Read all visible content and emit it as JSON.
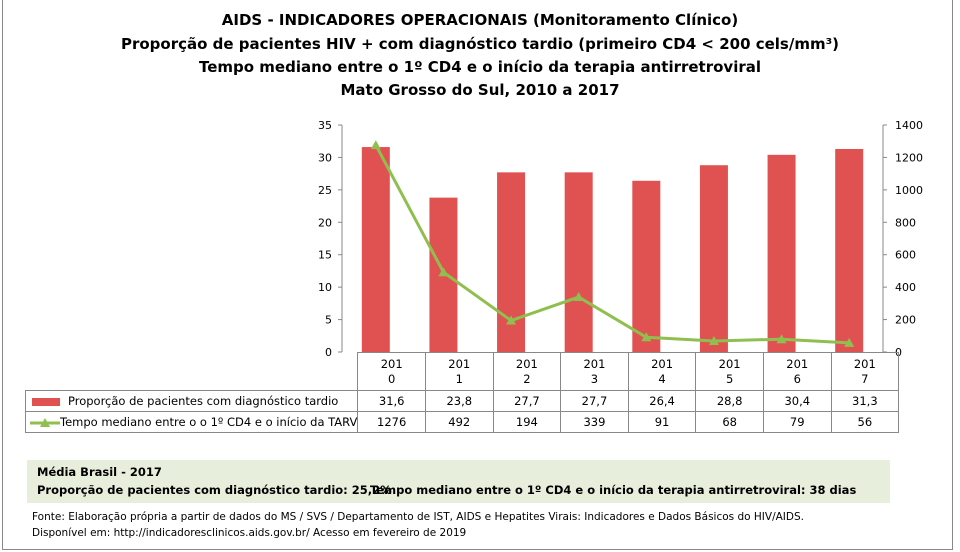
{
  "titles": [
    "AIDS - INDICADORES OPERACIONAIS (Monitoramento Clínico)",
    "Proporção de pacientes HIV + com diagnóstico tardio (primeiro CD4 < 200 cels/mm³)",
    "Tempo mediano entre o 1º CD4 e o início da terapia antirretroviral",
    "Mato Grosso do Sul, 2010 a 2017"
  ],
  "chart_data": {
    "type": "bar+line",
    "categories": [
      "2010",
      "2011",
      "2012",
      "2013",
      "2014",
      "2015",
      "2016",
      "2017"
    ],
    "category_labels": [
      [
        "201",
        "0"
      ],
      [
        "201",
        "1"
      ],
      [
        "201",
        "2"
      ],
      [
        "201",
        "3"
      ],
      [
        "201",
        "4"
      ],
      [
        "201",
        "5"
      ],
      [
        "201",
        "6"
      ],
      [
        "201",
        "7"
      ]
    ],
    "series": [
      {
        "name": "Proporção de pacientes com diagnóstico tardio",
        "type": "bar",
        "axis": "left",
        "color": "#e05252",
        "values": [
          31.6,
          23.8,
          27.7,
          27.7,
          26.4,
          28.8,
          30.4,
          31.3
        ],
        "labels": [
          "31,6",
          "23,8",
          "27,7",
          "27,7",
          "26,4",
          "28,8",
          "30,4",
          "31,3"
        ]
      },
      {
        "name": "Tempo mediano entre o o 1º CD4 e o início da TARV",
        "type": "line",
        "axis": "right",
        "color": "#8fbf4f",
        "marker": "triangle",
        "values": [
          1276,
          492,
          194,
          339,
          91,
          68,
          79,
          56
        ],
        "labels": [
          "1276",
          "492",
          "194",
          "339",
          "91",
          "68",
          "79",
          "56"
        ]
      }
    ],
    "ylim_left": [
      0,
      35
    ],
    "yticks_left": [
      0,
      5,
      10,
      15,
      20,
      25,
      30,
      35
    ],
    "ylim_right": [
      0,
      1400
    ],
    "yticks_right": [
      0,
      200,
      400,
      600,
      800,
      1000,
      1200,
      1400
    ],
    "grid": false,
    "legend": "data-table"
  },
  "media": {
    "heading": "Média Brasil  - 2017",
    "prop": "Proporção de pacientes com diagnóstico  tardio: 25,2%",
    "tempo": "Tempo mediano entre o 1º CD4 e o início da terapia antirretroviral: 38 dias"
  },
  "fonte": [
    "Fonte: Elaboração própria a partir de dados do  MS / SVS / Departamento de IST, AIDS e Hepatites Virais: Indicadores e Dados Básicos do HIV/AIDS.",
    "Disponível em: http://indicadoresclinicos.aids.gov.br/ Acesso em fevereiro de 2019"
  ]
}
